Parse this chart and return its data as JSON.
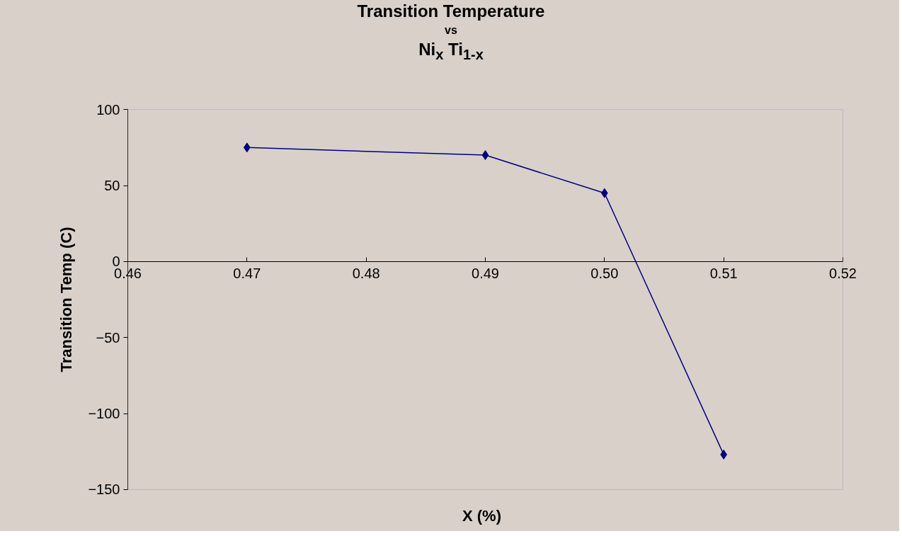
{
  "chart_data": {
    "type": "line",
    "title": "Transition Temperature\nvs\nNi$_{x}$ Ti$_{1-x}$",
    "xlabel": "X (%)",
    "ylabel": "Transition Temp (C)",
    "x": [
      0.47,
      0.49,
      0.5,
      0.51
    ],
    "series": [
      {
        "color": "#000080",
        "values": [
          75,
          70,
          45,
          -127
        ]
      }
    ],
    "xlim": [
      0.46,
      0.52
    ],
    "xticks": [
      0.46,
      0.47,
      0.48,
      0.49,
      {
        "value": 0.5,
        "label": "0.50"
      },
      0.51,
      0.52
    ],
    "ylim": [
      -150,
      100
    ],
    "yticks": [
      -150,
      -100,
      -50,
      0,
      50,
      100
    ],
    "marker": "diamond",
    "line_style": "solid",
    "grid": false
  }
}
